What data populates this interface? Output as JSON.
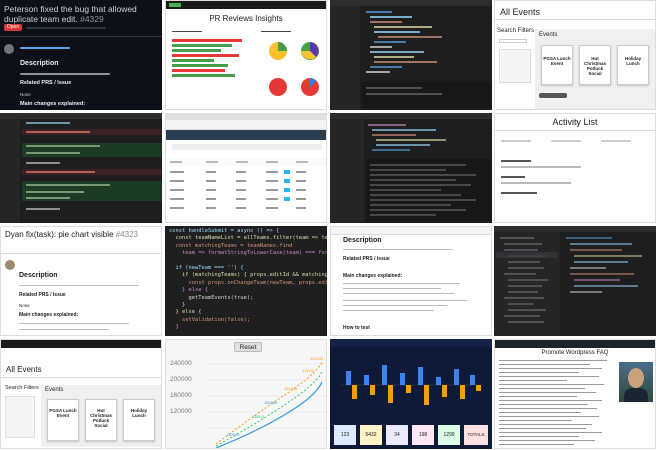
{
  "t1": {
    "title": "Peterson fixed the bug that allowed duplicate team edit.",
    "pr_num": "#4329",
    "badge": "Open",
    "heading": "Description",
    "related": "Related PRS / Issue",
    "none": "None",
    "main": "Main changes explained:"
  },
  "t2": {
    "title": "PR Reviews Insights"
  },
  "t4": {
    "title": "All Events",
    "search": "Search Filters",
    "events": "Events",
    "cards": [
      {
        "name": "PGSA Lunch Event"
      },
      {
        "name": "Hut Christmas Potluck Social"
      },
      {
        "name": "Holiday Lunch"
      }
    ]
  },
  "t8": {
    "title": "Activity List"
  },
  "t9": {
    "title": "Dyan fix(task): pie chart visible",
    "pr_num": "#4323",
    "heading": "Description",
    "related": "Related PRS / Issue",
    "none": "None",
    "main": "Main changes explained:"
  },
  "t10": {
    "code": [
      "const handleSubmit = async () => {",
      "  const teamNameList = allTeams.filter(team => team.teamName).map",
      "  const matchingTeams = teamNames.find",
      "    team => formatStringToLowerCase(team) === formatStringToLowerCase(team",
      "",
      "  if (newTeam === '') {",
      "    if (matchingTeams) { props.editId && matchingTeams) {",
      "      const props.onChangeTeam(newTeam, props.editId);",
      "    } else {",
      "      getTeamEvents(true);",
      "    }",
      "  } else {",
      "    setValidation(false);",
      "  }"
    ]
  },
  "t11": {
    "heading": "Description",
    "related": "Related PRS / Issue",
    "main": "Main changes explained:",
    "howto": "How to test"
  },
  "t13": {
    "title": "All Events",
    "search": "Search Filters",
    "events": "Events",
    "cards": [
      {
        "name": "PGSA Lunch Event"
      },
      {
        "name": "Hut Christmas Potluck Social"
      },
      {
        "name": "Holiday Lunch"
      }
    ]
  },
  "t14": {
    "reset": "Reset",
    "y_ticks": [
      "240000",
      "200000",
      "160000",
      "120000"
    ]
  },
  "t15": {
    "stats": [
      "123",
      "5432",
      "34",
      "198",
      "1299",
      "TOTALS"
    ]
  },
  "t16": {
    "title": "Promote Wordpress FAQ"
  }
}
